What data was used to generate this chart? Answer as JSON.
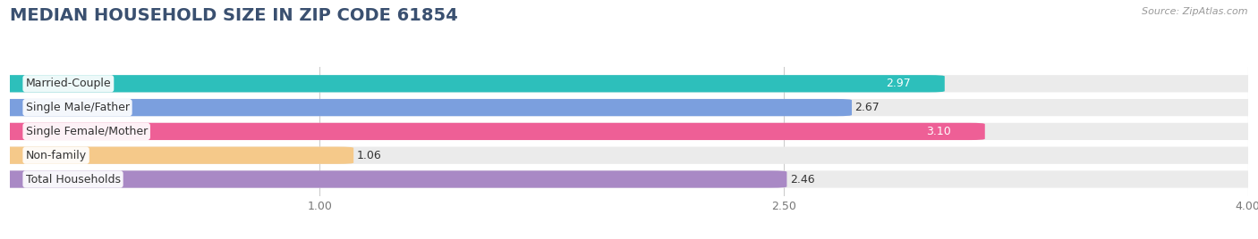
{
  "title": "MEDIAN HOUSEHOLD SIZE IN ZIP CODE 61854",
  "source": "Source: ZipAtlas.com",
  "categories": [
    "Married-Couple",
    "Single Male/Father",
    "Single Female/Mother",
    "Non-family",
    "Total Households"
  ],
  "values": [
    2.97,
    2.67,
    3.1,
    1.06,
    2.46
  ],
  "bar_colors": [
    "#2dbfbb",
    "#7b9fde",
    "#ee5f96",
    "#f5c98a",
    "#a989c5"
  ],
  "value_inside": [
    true,
    false,
    true,
    false,
    false
  ],
  "xmin": 0.0,
  "xmax": 4.0,
  "xticks": [
    1.0,
    2.5,
    4.0
  ],
  "background_color": "#ffffff",
  "bar_background_color": "#ebebeb",
  "title_fontsize": 14,
  "bar_height": 0.62,
  "label_fontsize": 9,
  "value_fontsize": 9,
  "cat_fontsize": 9
}
